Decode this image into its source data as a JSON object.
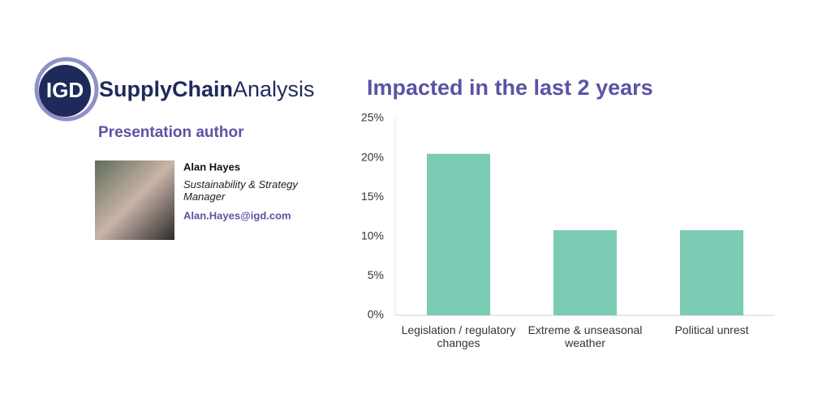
{
  "logo": {
    "mark": "IGD",
    "brand_bold": "SupplyChain",
    "brand_light": "Analysis"
  },
  "author": {
    "heading": "Presentation author",
    "name": "Alan Hayes",
    "role": "Sustainability & Strategy Manager",
    "email": "Alan.Hayes@igd.com"
  },
  "chart_data": {
    "type": "bar",
    "title": "Impacted in the last 2 years",
    "categories": [
      "Legislation / regulatory changes",
      "Extreme & unseasonal weather",
      "Political unrest"
    ],
    "values": [
      20.5,
      10.8,
      10.8
    ],
    "color": "#7bcbb5",
    "ylim": [
      0,
      25
    ],
    "yticks": [
      {
        "value": 0,
        "label": "0%"
      },
      {
        "value": 5,
        "label": "5%"
      },
      {
        "value": 10,
        "label": "10%"
      },
      {
        "value": 15,
        "label": "15%"
      },
      {
        "value": 20,
        "label": "20%"
      },
      {
        "value": 25,
        "label": "25%"
      }
    ]
  }
}
